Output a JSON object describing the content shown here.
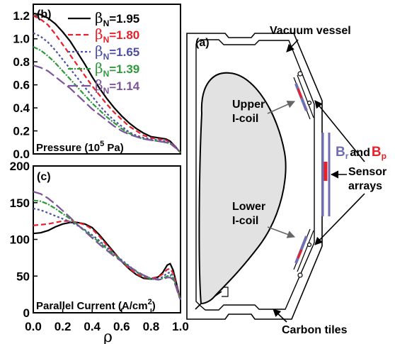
{
  "colors": {
    "s195": "#000000",
    "s180": "#e8202a",
    "s165": "#4d4fa6",
    "s139": "#2e9a3c",
    "s114": "#7a559a",
    "plasma": "#e2e2e2",
    "sensor_blue": "#6d6fb2",
    "sensor_red": "#e8202a"
  },
  "chart_data": [
    {
      "type": "line",
      "panel": "(b)",
      "text_label": "Pressure (10",
      "text_sup": "5",
      "text_end": " Pa)",
      "xlim": [
        0.0,
        1.0
      ],
      "ylim": [
        0.0,
        1.3
      ],
      "yticks": [
        "0.0",
        "0.2",
        "0.4",
        "0.6",
        "0.8",
        "1.0",
        "1.2"
      ],
      "legend": [
        {
          "sym": "β",
          "sub": "N",
          "val": "=1.95"
        },
        {
          "sym": "β",
          "sub": "N",
          "val": "=1.80"
        },
        {
          "sym": "β",
          "sub": "N",
          "val": "=1.65"
        },
        {
          "sym": "β",
          "sub": "N",
          "val": "=1.39"
        },
        {
          "sym": "β",
          "sub": "N",
          "val": "=1.14"
        }
      ],
      "series": [
        {
          "key": "s195",
          "dash": "",
          "x": [
            0,
            0.05,
            0.1,
            0.15,
            0.2,
            0.25,
            0.3,
            0.35,
            0.4,
            0.45,
            0.5,
            0.55,
            0.6,
            0.65,
            0.7,
            0.75,
            0.8,
            0.85,
            0.9,
            0.93,
            0.96,
            0.98,
            1.0
          ],
          "y": [
            1.22,
            1.21,
            1.18,
            1.13,
            1.06,
            0.98,
            0.88,
            0.78,
            0.67,
            0.57,
            0.48,
            0.4,
            0.33,
            0.27,
            0.22,
            0.18,
            0.15,
            0.14,
            0.13,
            0.11,
            0.07,
            0.04,
            0.01
          ]
        },
        {
          "key": "s180",
          "dash": "7,4",
          "x": [
            0,
            0.05,
            0.1,
            0.15,
            0.2,
            0.25,
            0.3,
            0.35,
            0.4,
            0.45,
            0.5,
            0.55,
            0.6,
            0.65,
            0.7,
            0.75,
            0.8,
            0.85,
            0.9,
            0.93,
            0.96,
            0.98,
            1.0
          ],
          "y": [
            1.2,
            1.17,
            1.12,
            1.04,
            0.95,
            0.86,
            0.77,
            0.68,
            0.59,
            0.51,
            0.43,
            0.36,
            0.3,
            0.24,
            0.2,
            0.16,
            0.14,
            0.13,
            0.12,
            0.1,
            0.07,
            0.04,
            0.01
          ]
        },
        {
          "key": "s165",
          "dash": "3,3",
          "x": [
            0,
            0.05,
            0.1,
            0.15,
            0.2,
            0.25,
            0.3,
            0.35,
            0.4,
            0.45,
            0.5,
            0.55,
            0.6,
            0.65,
            0.7,
            0.75,
            0.8,
            0.85,
            0.9,
            0.93,
            0.96,
            0.98,
            1.0
          ],
          "y": [
            1.05,
            1.02,
            0.97,
            0.9,
            0.82,
            0.74,
            0.66,
            0.58,
            0.5,
            0.42,
            0.35,
            0.29,
            0.24,
            0.19,
            0.16,
            0.14,
            0.13,
            0.12,
            0.11,
            0.1,
            0.07,
            0.04,
            0.01
          ]
        },
        {
          "key": "s139",
          "dash": "7,2,2,2",
          "x": [
            0,
            0.05,
            0.1,
            0.15,
            0.2,
            0.25,
            0.3,
            0.35,
            0.4,
            0.45,
            0.5,
            0.55,
            0.6,
            0.65,
            0.7,
            0.75,
            0.8,
            0.85,
            0.9,
            0.93,
            0.96,
            0.98,
            1.0
          ],
          "y": [
            0.93,
            0.9,
            0.85,
            0.79,
            0.72,
            0.65,
            0.58,
            0.51,
            0.44,
            0.38,
            0.32,
            0.27,
            0.22,
            0.18,
            0.15,
            0.13,
            0.12,
            0.11,
            0.1,
            0.09,
            0.06,
            0.04,
            0.01
          ]
        },
        {
          "key": "s114",
          "dash": "14,5",
          "x": [
            0,
            0.05,
            0.1,
            0.15,
            0.2,
            0.25,
            0.3,
            0.35,
            0.4,
            0.45,
            0.5,
            0.55,
            0.6,
            0.65,
            0.7,
            0.75,
            0.8,
            0.85,
            0.9,
            0.93,
            0.96,
            0.98,
            1.0
          ],
          "y": [
            0.77,
            0.75,
            0.72,
            0.67,
            0.62,
            0.57,
            0.51,
            0.45,
            0.39,
            0.34,
            0.29,
            0.24,
            0.2,
            0.17,
            0.15,
            0.13,
            0.12,
            0.11,
            0.1,
            0.09,
            0.06,
            0.04,
            0.01
          ]
        }
      ]
    },
    {
      "type": "line",
      "panel": "(c)",
      "text_label": "Parallel Current (A/cm",
      "text_sup": "2",
      "text_end": ")",
      "xlim": [
        0.0,
        1.0
      ],
      "ylim": [
        0,
        200
      ],
      "xticks": [
        "0.0",
        "0.2",
        "0.4",
        "0.6",
        "0.8",
        "1.0"
      ],
      "yticks": [
        "0",
        "50",
        "100",
        "150",
        "200"
      ],
      "xlabel": "ρ",
      "series": [
        {
          "key": "s195",
          "dash": "",
          "x": [
            0,
            0.05,
            0.1,
            0.15,
            0.2,
            0.25,
            0.3,
            0.35,
            0.4,
            0.45,
            0.5,
            0.55,
            0.6,
            0.65,
            0.7,
            0.75,
            0.8,
            0.85,
            0.88,
            0.91,
            0.93,
            0.95,
            0.97,
            0.99,
            1.0
          ],
          "y": [
            108,
            109,
            112,
            117,
            121,
            123,
            123,
            121,
            116,
            106,
            94,
            82,
            70,
            60,
            52,
            47,
            46,
            49,
            55,
            65,
            67,
            58,
            42,
            25,
            18
          ]
        },
        {
          "key": "s180",
          "dash": "7,4",
          "x": [
            0,
            0.05,
            0.1,
            0.15,
            0.2,
            0.25,
            0.3,
            0.35,
            0.4,
            0.45,
            0.5,
            0.55,
            0.6,
            0.65,
            0.7,
            0.75,
            0.8,
            0.85,
            0.88,
            0.91,
            0.93,
            0.95,
            0.97,
            0.99,
            1.0
          ],
          "y": [
            119,
            120,
            121,
            123,
            125,
            125,
            123,
            120,
            114,
            104,
            92,
            81,
            70,
            61,
            53,
            48,
            47,
            49,
            53,
            59,
            60,
            54,
            40,
            25,
            18
          ]
        },
        {
          "key": "s165",
          "dash": "3,3",
          "x": [
            0,
            0.05,
            0.1,
            0.15,
            0.2,
            0.25,
            0.3,
            0.35,
            0.4,
            0.45,
            0.5,
            0.55,
            0.6,
            0.65,
            0.7,
            0.75,
            0.8,
            0.85,
            0.88,
            0.91,
            0.93,
            0.95,
            0.97,
            0.99,
            1.0
          ],
          "y": [
            142,
            140,
            136,
            132,
            128,
            124,
            119,
            113,
            106,
            98,
            89,
            80,
            72,
            64,
            56,
            50,
            47,
            46,
            49,
            54,
            55,
            50,
            38,
            24,
            18
          ]
        },
        {
          "key": "s139",
          "dash": "7,2,2,2",
          "x": [
            0,
            0.05,
            0.1,
            0.15,
            0.2,
            0.25,
            0.3,
            0.35,
            0.4,
            0.45,
            0.5,
            0.55,
            0.6,
            0.65,
            0.7,
            0.75,
            0.8,
            0.85,
            0.88,
            0.91,
            0.93,
            0.95,
            0.97,
            0.99,
            1.0
          ],
          "y": [
            153,
            152,
            148,
            142,
            135,
            128,
            120,
            112,
            104,
            96,
            87,
            79,
            71,
            63,
            56,
            50,
            46,
            45,
            47,
            50,
            51,
            47,
            36,
            23,
            18
          ]
        },
        {
          "key": "s114",
          "dash": "14,5",
          "x": [
            0,
            0.05,
            0.1,
            0.15,
            0.2,
            0.25,
            0.3,
            0.35,
            0.4,
            0.45,
            0.5,
            0.55,
            0.6,
            0.65,
            0.7,
            0.75,
            0.8,
            0.85,
            0.88,
            0.91,
            0.93,
            0.95,
            0.97,
            0.99,
            1.0
          ],
          "y": [
            165,
            162,
            156,
            148,
            139,
            130,
            120,
            111,
            102,
            93,
            85,
            77,
            70,
            63,
            57,
            51,
            47,
            45,
            46,
            48,
            48,
            45,
            35,
            22,
            18
          ]
        }
      ]
    }
  ],
  "diagram": {
    "panel": "(a)",
    "vacuum_vessel": "Vacuum vessel",
    "upper_icoil_1": "Upper",
    "upper_icoil_2": "I-coil",
    "lower_icoil_1": "Lower",
    "lower_icoil_2": "I-coil",
    "br": "B",
    "br_sub": "r",
    "and": "and",
    "bp": "B",
    "bp_sub": "p",
    "sensor_1": "Sensor",
    "sensor_2": "arrays",
    "carbon_tiles": "Carbon tiles"
  }
}
